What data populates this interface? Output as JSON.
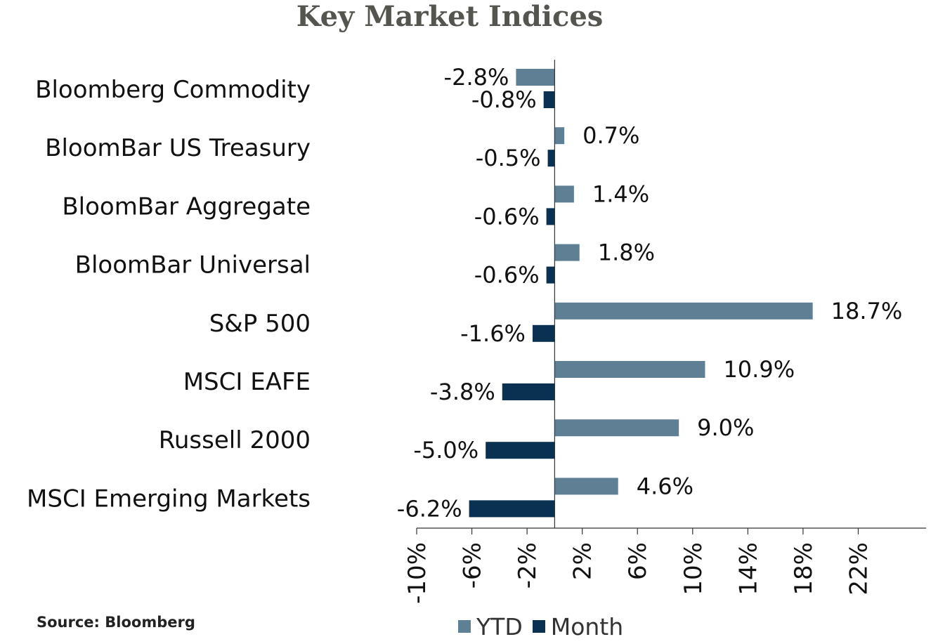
{
  "chart_data": {
    "type": "bar",
    "orientation": "horizontal",
    "title": "Key Market Indices",
    "categories": [
      "Bloomberg Commodity",
      "BloomBar US Treasury",
      "BloomBar Aggregate",
      "BloomBar Universal",
      "S&P 500",
      "MSCI EAFE",
      "Russell 2000",
      "MSCI Emerging Markets"
    ],
    "series": [
      {
        "name": "YTD",
        "color": "#5f7f94",
        "values": [
          -2.8,
          0.7,
          1.4,
          1.8,
          18.7,
          10.9,
          9.0,
          4.6
        ],
        "labels": [
          "-2.8%",
          "0.7%",
          "1.4%",
          "1.8%",
          "18.7%",
          "10.9%",
          "9.0%",
          "4.6%"
        ]
      },
      {
        "name": "Month",
        "color": "#0a3152",
        "values": [
          -0.8,
          -0.5,
          -0.6,
          -0.6,
          -1.6,
          -3.8,
          -5.0,
          -6.2
        ],
        "labels": [
          "-0.8%",
          "-0.5%",
          "-0.6%",
          "-0.6%",
          "-1.6%",
          "-3.8%",
          "-5.0%",
          "-6.2%"
        ]
      }
    ],
    "xlim": [
      -10,
      26
    ],
    "xticks": [
      -10,
      -6,
      -2,
      2,
      6,
      10,
      14,
      18,
      22
    ],
    "xtick_labels": [
      "-10%",
      "-6%",
      "-2%",
      "2%",
      "6%",
      "10%",
      "14%",
      "18%",
      "22%"
    ],
    "grid": false,
    "legend_position": "bottom"
  },
  "source": "Source: Bloomberg"
}
